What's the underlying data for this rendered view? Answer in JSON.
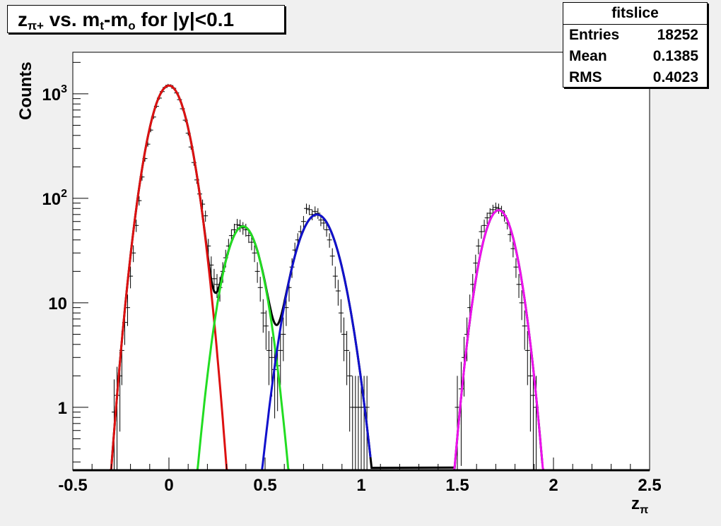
{
  "chart_data": {
    "type": "scatter",
    "title_main": "z",
    "title_main_sub": "π+",
    "title_vs": " vs. m",
    "title_t": "t",
    "title_dash": "-m",
    "title_o": "o",
    "title_tail": " for |y|<0.1",
    "xlabel": "z",
    "xlabel_sub": "π",
    "ylabel": "Counts",
    "xlim": [
      -0.5,
      2.5
    ],
    "ylim": [
      0.25,
      2500
    ],
    "yscale": "log",
    "x_ticks": [
      "-0.5",
      "0",
      "0.5",
      "1",
      "1.5",
      "2",
      "2.5"
    ],
    "x_tick_values": [
      -0.5,
      0,
      0.5,
      1,
      1.5,
      2,
      2.5
    ],
    "y_ticks": [
      {
        "value": 1,
        "base": "1",
        "exp": ""
      },
      {
        "value": 10,
        "base": "10",
        "exp": ""
      },
      {
        "value": 100,
        "base": "10",
        "exp": "2"
      },
      {
        "value": 1000,
        "base": "10",
        "exp": "3"
      }
    ],
    "stats": {
      "title": "fitslice",
      "rows": [
        {
          "label": "Entries",
          "value": "18252"
        },
        {
          "label": "Mean",
          "value": "0.1385"
        },
        {
          "label": "RMS",
          "value": "0.4023"
        }
      ]
    },
    "fits": [
      {
        "name": "red",
        "color": "#dd1111",
        "amp": 1200,
        "mean": 0.0,
        "sigma": 0.073,
        "xmin": -0.32,
        "xmax": 0.32
      },
      {
        "name": "green",
        "color": "#22dd22",
        "amp": 54,
        "mean": 0.385,
        "sigma": 0.072,
        "xmin": 0.08,
        "xmax": 0.67
      },
      {
        "name": "blue",
        "color": "#1111cc",
        "amp": 70,
        "mean": 0.77,
        "sigma": 0.085,
        "xmin": 0.46,
        "xmax": 1.05
      },
      {
        "name": "magenta",
        "color": "#ee11ee",
        "amp": 77,
        "mean": 1.715,
        "sigma": 0.068,
        "xmin": 1.4,
        "xmax": 2.02
      }
    ],
    "points": [
      {
        "x": -0.285,
        "y": 0.9
      },
      {
        "x": -0.27,
        "y": 1.3
      },
      {
        "x": -0.255,
        "y": 2.0
      },
      {
        "x": -0.245,
        "y": 3.5
      },
      {
        "x": -0.23,
        "y": 6.5
      },
      {
        "x": -0.215,
        "y": 9.0
      },
      {
        "x": -0.2,
        "y": 18
      },
      {
        "x": -0.185,
        "y": 30
      },
      {
        "x": -0.17,
        "y": 55
      },
      {
        "x": -0.155,
        "y": 95
      },
      {
        "x": -0.14,
        "y": 160
      },
      {
        "x": -0.125,
        "y": 240
      },
      {
        "x": -0.11,
        "y": 330
      },
      {
        "x": -0.095,
        "y": 450
      },
      {
        "x": -0.08,
        "y": 600
      },
      {
        "x": -0.065,
        "y": 760
      },
      {
        "x": -0.05,
        "y": 910
      },
      {
        "x": -0.035,
        "y": 1050
      },
      {
        "x": -0.02,
        "y": 1150
      },
      {
        "x": -0.005,
        "y": 1210
      },
      {
        "x": 0.01,
        "y": 1200
      },
      {
        "x": 0.025,
        "y": 1130
      },
      {
        "x": 0.04,
        "y": 1020
      },
      {
        "x": 0.055,
        "y": 880
      },
      {
        "x": 0.07,
        "y": 720
      },
      {
        "x": 0.085,
        "y": 560
      },
      {
        "x": 0.1,
        "y": 420
      },
      {
        "x": 0.115,
        "y": 310
      },
      {
        "x": 0.13,
        "y": 220
      },
      {
        "x": 0.145,
        "y": 150
      },
      {
        "x": 0.16,
        "y": 110
      },
      {
        "x": 0.175,
        "y": 88
      },
      {
        "x": 0.19,
        "y": 68
      },
      {
        "x": 0.205,
        "y": 35
      },
      {
        "x": 0.22,
        "y": 23
      },
      {
        "x": 0.235,
        "y": 17
      },
      {
        "x": 0.25,
        "y": 15
      },
      {
        "x": 0.265,
        "y": 14
      },
      {
        "x": 0.28,
        "y": 20
      },
      {
        "x": 0.295,
        "y": 27
      },
      {
        "x": 0.31,
        "y": 35
      },
      {
        "x": 0.325,
        "y": 44
      },
      {
        "x": 0.34,
        "y": 50
      },
      {
        "x": 0.355,
        "y": 56
      },
      {
        "x": 0.37,
        "y": 55
      },
      {
        "x": 0.385,
        "y": 52
      },
      {
        "x": 0.4,
        "y": 50
      },
      {
        "x": 0.415,
        "y": 44
      },
      {
        "x": 0.43,
        "y": 38
      },
      {
        "x": 0.445,
        "y": 30
      },
      {
        "x": 0.46,
        "y": 20
      },
      {
        "x": 0.475,
        "y": 14
      },
      {
        "x": 0.49,
        "y": 8
      },
      {
        "x": 0.505,
        "y": 6
      },
      {
        "x": 0.52,
        "y": 3.5
      },
      {
        "x": 0.535,
        "y": 3.0
      },
      {
        "x": 0.55,
        "y": 2.3
      },
      {
        "x": 0.565,
        "y": 2.5
      },
      {
        "x": 0.58,
        "y": 3.5
      },
      {
        "x": 0.595,
        "y": 5.0
      },
      {
        "x": 0.61,
        "y": 9
      },
      {
        "x": 0.625,
        "y": 14
      },
      {
        "x": 0.64,
        "y": 22
      },
      {
        "x": 0.655,
        "y": 32
      },
      {
        "x": 0.67,
        "y": 40
      },
      {
        "x": 0.685,
        "y": 48
      },
      {
        "x": 0.7,
        "y": 60
      },
      {
        "x": 0.715,
        "y": 80
      },
      {
        "x": 0.73,
        "y": 78
      },
      {
        "x": 0.745,
        "y": 70
      },
      {
        "x": 0.76,
        "y": 75
      },
      {
        "x": 0.775,
        "y": 72
      },
      {
        "x": 0.79,
        "y": 62
      },
      {
        "x": 0.805,
        "y": 58
      },
      {
        "x": 0.82,
        "y": 50
      },
      {
        "x": 0.835,
        "y": 40
      },
      {
        "x": 0.85,
        "y": 28
      },
      {
        "x": 0.865,
        "y": 18
      },
      {
        "x": 0.88,
        "y": 13
      },
      {
        "x": 0.895,
        "y": 8
      },
      {
        "x": 0.91,
        "y": 5
      },
      {
        "x": 0.925,
        "y": 3.5
      },
      {
        "x": 0.94,
        "y": 2.0
      },
      {
        "x": 0.955,
        "y": 1.0
      },
      {
        "x": 0.97,
        "y": 1.0
      },
      {
        "x": 0.985,
        "y": 1.0
      },
      {
        "x": 1.0,
        "y": 1.0
      },
      {
        "x": 1.015,
        "y": 1.0
      },
      {
        "x": 1.03,
        "y": 1.0
      },
      {
        "x": 1.5,
        "y": 1.0
      },
      {
        "x": 1.52,
        "y": 1.5
      },
      {
        "x": 1.535,
        "y": 3.0
      },
      {
        "x": 1.55,
        "y": 5.0
      },
      {
        "x": 1.565,
        "y": 9
      },
      {
        "x": 1.58,
        "y": 15
      },
      {
        "x": 1.595,
        "y": 24
      },
      {
        "x": 1.61,
        "y": 35
      },
      {
        "x": 1.625,
        "y": 48
      },
      {
        "x": 1.64,
        "y": 55
      },
      {
        "x": 1.655,
        "y": 65
      },
      {
        "x": 1.67,
        "y": 72
      },
      {
        "x": 1.685,
        "y": 78
      },
      {
        "x": 1.7,
        "y": 82
      },
      {
        "x": 1.715,
        "y": 80
      },
      {
        "x": 1.73,
        "y": 76
      },
      {
        "x": 1.745,
        "y": 68
      },
      {
        "x": 1.76,
        "y": 58
      },
      {
        "x": 1.775,
        "y": 45
      },
      {
        "x": 1.79,
        "y": 33
      },
      {
        "x": 1.805,
        "y": 22
      },
      {
        "x": 1.82,
        "y": 15
      },
      {
        "x": 1.835,
        "y": 10
      },
      {
        "x": 1.85,
        "y": 6
      },
      {
        "x": 1.865,
        "y": 3.5
      },
      {
        "x": 1.88,
        "y": 2.0
      },
      {
        "x": 1.895,
        "y": 1.3
      },
      {
        "x": 1.91,
        "y": 1.0
      }
    ]
  }
}
